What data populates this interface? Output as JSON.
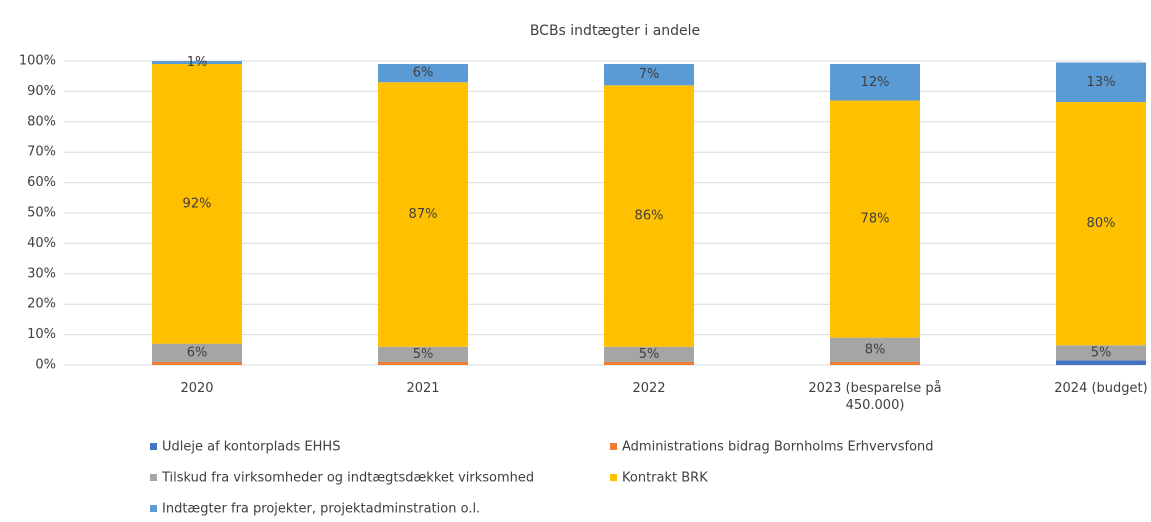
{
  "chart_data": {
    "type": "stacked_bar",
    "title": "BCBs indtægter i andele",
    "categories": [
      "2020",
      "2021",
      "2022",
      "2023 (besparelse på 450.000)",
      "2024 (budget)"
    ],
    "series": [
      {
        "name": "Udleje af kontorplads EHHS",
        "color": "#4472c4",
        "values": [
          0,
          0,
          0,
          0,
          1.5
        ]
      },
      {
        "name": "Administrations bidrag Bornholms Erhvervsfond",
        "color": "#ed7d31",
        "values": [
          1,
          1,
          1,
          1,
          0
        ]
      },
      {
        "name": "Tilskud fra virksomheder og indtægtsdækket virksomhed",
        "color": "#a5a5a5",
        "values": [
          6,
          5,
          5,
          8,
          5
        ],
        "value_labels": [
          "6%",
          "5%",
          "5%",
          "8%",
          "5%"
        ]
      },
      {
        "name": "Kontrakt  BRK",
        "color": "#ffc000",
        "values": [
          92,
          87,
          86,
          78,
          80
        ],
        "value_labels": [
          "92%",
          "87%",
          "86%",
          "78%",
          "80%"
        ]
      },
      {
        "name": "Indtægter fra projekter, projektadminstration o.l.",
        "color": "#5b9bd5",
        "values": [
          1,
          6,
          7,
          12,
          13
        ],
        "value_labels": [
          "1%",
          "6%",
          "7%",
          "12%",
          "13%"
        ]
      }
    ],
    "ylim": [
      0,
      100
    ],
    "yticks": [
      {
        "value": 0,
        "label": "0%"
      },
      {
        "value": 10,
        "label": "10%"
      },
      {
        "value": 20,
        "label": "20%"
      },
      {
        "value": 30,
        "label": "30%"
      },
      {
        "value": 40,
        "label": "40%"
      },
      {
        "value": 50,
        "label": "50%"
      },
      {
        "value": 60,
        "label": "60%"
      },
      {
        "value": 70,
        "label": "70%"
      },
      {
        "value": 80,
        "label": "80%"
      },
      {
        "value": 90,
        "label": "90%"
      },
      {
        "value": 100,
        "label": "100%"
      }
    ],
    "grid": true
  }
}
